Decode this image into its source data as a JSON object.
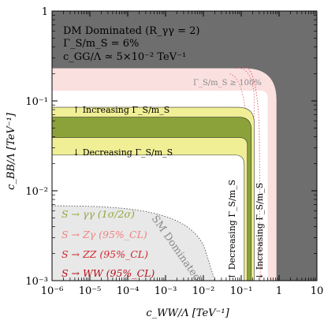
{
  "chart_data": {
    "type": "area",
    "xlabel": "c_WW/Λ  [TeV⁻¹]",
    "ylabel": "c_BB/Λ  [TeV⁻¹]",
    "xscale": "log",
    "yscale": "log",
    "xlim": [
      1e-06,
      10
    ],
    "ylim": [
      0.001,
      1
    ],
    "x_ticks": [
      {
        "v": 1e-06,
        "label": "10⁻⁶"
      },
      {
        "v": 1e-05,
        "label": "10⁻⁵"
      },
      {
        "v": 0.0001,
        "label": "10⁻⁴"
      },
      {
        "v": 0.001,
        "label": "10⁻³"
      },
      {
        "v": 0.01,
        "label": "10⁻²"
      },
      {
        "v": 0.1,
        "label": "10⁻¹"
      },
      {
        "v": 1,
        "label": "1"
      },
      {
        "v": 10,
        "label": "10"
      }
    ],
    "y_ticks": [
      {
        "v": 0.001,
        "label": "10⁻³"
      },
      {
        "v": 0.01,
        "label": "10⁻²"
      },
      {
        "v": 0.1,
        "label": "10⁻¹"
      },
      {
        "v": 1,
        "label": "1"
      }
    ],
    "info_box": [
      "DM Dominated  (R_γγ = 2)",
      "Γ_S/m_S = 6%",
      "c_GG/Λ ≃ 5×10⁻² TeV⁻¹"
    ],
    "annotations": {
      "width_limit": "Γ_S/m_S ≥ 100%",
      "increasing": "↑ Increasing Γ_S/m_S",
      "decreasing": "↓ Decreasing Γ_S/m_S",
      "decreasing_vertical": "↑ Decreasing Γ_S/m_S",
      "increasing_vertical": "↓ Increasing Γ_S/m_S",
      "sm_dominated": "SM Dominated"
    },
    "legend_position": "bottom-left",
    "legend": [
      {
        "label": "S → γγ (1σ/2σ)",
        "color": "#8fa83a"
      },
      {
        "label": "S → Zγ (95%_CL)",
        "color": "#f08080"
      },
      {
        "label": "S → ZZ (95%_CL)",
        "color": "#d4242c"
      },
      {
        "label": "S → WW (95%_CL)",
        "color": "#b50f1a"
      }
    ],
    "regions": {
      "excluded_fill": "#6e6e6e",
      "width_band_fill": "#fbe0e0",
      "sm_dominated_fill": "#e8e8e8",
      "band_2sigma_fill": "#f1ef96",
      "band_1sigma_fill": "#8ba23a",
      "band_x": 0.15,
      "band_y": 0.05
    }
  }
}
